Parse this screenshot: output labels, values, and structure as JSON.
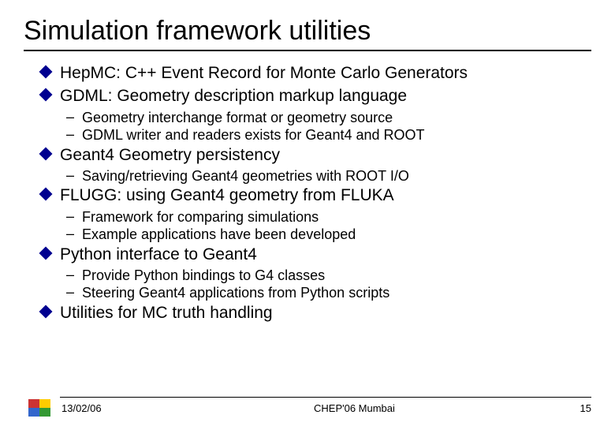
{
  "title": "Simulation framework utilities",
  "items": [
    {
      "text": "HepMC: C++ Event Record for Monte Carlo Generators",
      "subs": []
    },
    {
      "text": "GDML: Geometry description markup language",
      "subs": [
        "Geometry interchange format or geometry source",
        "GDML writer and readers exists for Geant4 and ROOT"
      ]
    },
    {
      "text": "Geant4 Geometry persistency",
      "subs": [
        "Saving/retrieving Geant4 geometries with ROOT I/O"
      ]
    },
    {
      "text": "FLUGG: using Geant4 geometry from FLUKA",
      "subs": [
        "Framework for comparing simulations",
        "Example applications have been developed"
      ]
    },
    {
      "text": "Python interface to Geant4",
      "subs": [
        "Provide Python bindings to G4 classes",
        "Steering Geant4 applications from Python scripts"
      ]
    },
    {
      "text": "Utilities for MC truth handling",
      "subs": []
    }
  ],
  "footer": {
    "date": "13/02/06",
    "center": "CHEP'06 Mumbai",
    "page": "15"
  },
  "colors": {
    "bullet": "#000090",
    "text": "#000000",
    "rule": "#000000"
  }
}
